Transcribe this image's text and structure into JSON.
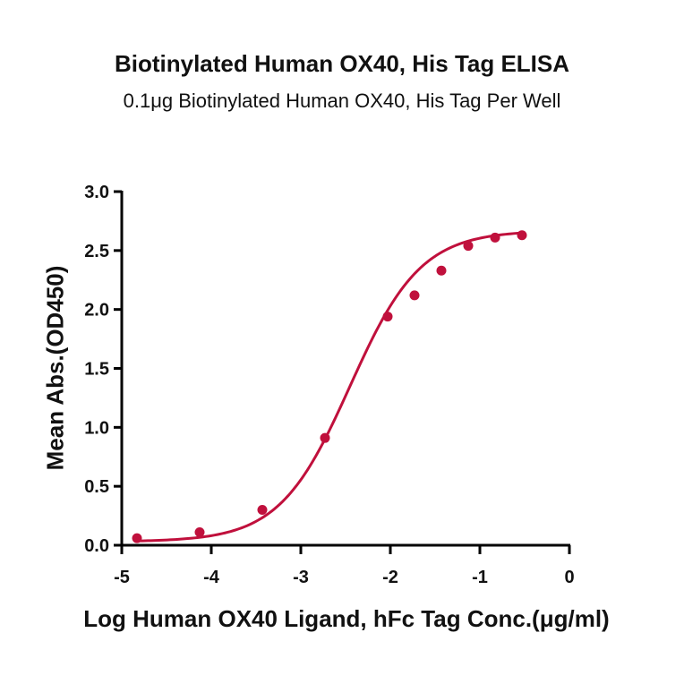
{
  "chart_data": {
    "type": "scatter",
    "title": "Biotinylated Human OX40, His Tag ELISA",
    "subtitle": "0.1μg Biotinylated Human OX40, His Tag Per Well",
    "xlabel": "Log Human OX40 Ligand, hFc Tag Conc.(μg/ml)",
    "ylabel": "Mean Abs.(OD450)",
    "xlim": [
      -5,
      0
    ],
    "ylim": [
      0,
      3.0
    ],
    "xticks": [
      -5,
      -4,
      -3,
      -2,
      -1,
      0
    ],
    "xtick_labels": [
      "-5",
      "-4",
      "-3",
      "-2",
      "-1",
      "0"
    ],
    "yticks": [
      0,
      0.5,
      1.0,
      1.5,
      2.0,
      2.5,
      3.0
    ],
    "ytick_labels": [
      "0.0",
      "0.5",
      "1.0",
      "1.5",
      "2.0",
      "2.5",
      "3.0"
    ],
    "grid": false,
    "color": "#c0103c",
    "points": [
      {
        "x": -4.83,
        "y": 0.06
      },
      {
        "x": -4.13,
        "y": 0.11
      },
      {
        "x": -3.43,
        "y": 0.3
      },
      {
        "x": -2.73,
        "y": 0.91
      },
      {
        "x": -2.03,
        "y": 1.94
      },
      {
        "x": -1.73,
        "y": 2.12
      },
      {
        "x": -1.43,
        "y": 2.33
      },
      {
        "x": -1.13,
        "y": 2.54
      },
      {
        "x": -0.83,
        "y": 2.61
      },
      {
        "x": -0.53,
        "y": 2.63
      }
    ],
    "fit": {
      "model": "4PL",
      "bottom": 0.03,
      "top": 2.67,
      "logEC50": -2.45,
      "hill": 1.1
    }
  }
}
